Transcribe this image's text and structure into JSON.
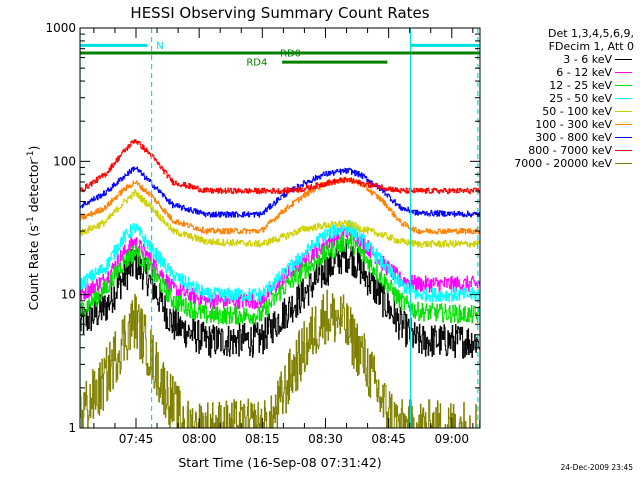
{
  "colors": {
    "background": "#ffffff",
    "axis": "#000000",
    "state_line": "#008000",
    "night_line": "#00e0e0"
  },
  "chart_data": {
    "type": "line",
    "title": "HESSI Observing Summary Count Rates",
    "xlabel": "Start Time (16-Sep-08 07:31:42)",
    "ylabel_parts": [
      "Count Rate (s",
      "-1",
      " detector",
      "-1",
      ")"
    ],
    "y_scale": "log",
    "ylim": [
      1,
      1000
    ],
    "y_ticks": [
      {
        "value": 1,
        "label": "1"
      },
      {
        "value": 10,
        "label": "10"
      },
      {
        "value": 100,
        "label": "100"
      },
      {
        "value": 1000,
        "label": "1000"
      }
    ],
    "xlim_minutes": [
      0,
      95
    ],
    "x_ticks": [
      {
        "value": 13.3,
        "label": "07:45"
      },
      {
        "value": 28.3,
        "label": "08:00"
      },
      {
        "value": 43.3,
        "label": "08:15"
      },
      {
        "value": 58.3,
        "label": "08:30"
      },
      {
        "value": 73.3,
        "label": "08:45"
      },
      {
        "value": 88.3,
        "label": "09:00"
      }
    ],
    "legend_header": [
      "Det 1,3,4,5,6,9,",
      "FDecim 1, Att 0"
    ],
    "series": [
      {
        "name": "3 - 6 keV",
        "color": "#000000",
        "noise": 0.3,
        "points": [
          [
            0,
            6
          ],
          [
            6,
            8
          ],
          [
            10,
            13
          ],
          [
            13,
            17.5
          ],
          [
            17,
            12
          ],
          [
            22,
            6
          ],
          [
            30,
            4.5
          ],
          [
            43,
            4.6
          ],
          [
            48,
            7
          ],
          [
            53,
            10
          ],
          [
            58,
            15
          ],
          [
            62,
            19
          ],
          [
            64,
            20
          ],
          [
            67,
            15
          ],
          [
            72,
            9
          ],
          [
            76,
            6
          ],
          [
            80,
            4.5
          ],
          [
            95,
            4.5
          ]
        ]
      },
      {
        "name": "6 - 12 keV",
        "color": "#ff00ff",
        "noise": 0.14,
        "points": [
          [
            0,
            10
          ],
          [
            6,
            13
          ],
          [
            10,
            20
          ],
          [
            13,
            25
          ],
          [
            17,
            18
          ],
          [
            22,
            11
          ],
          [
            30,
            9
          ],
          [
            43,
            9
          ],
          [
            48,
            13
          ],
          [
            53,
            18
          ],
          [
            58,
            24
          ],
          [
            62,
            29
          ],
          [
            64,
            30
          ],
          [
            67,
            25
          ],
          [
            72,
            17
          ],
          [
            76,
            13
          ],
          [
            80,
            12
          ],
          [
            95,
            12
          ]
        ]
      },
      {
        "name": "12 - 25 keV",
        "color": "#00e000",
        "noise": 0.16,
        "points": [
          [
            0,
            7.5
          ],
          [
            6,
            11
          ],
          [
            10,
            17
          ],
          [
            13,
            21
          ],
          [
            17,
            15
          ],
          [
            22,
            9
          ],
          [
            30,
            7
          ],
          [
            43,
            7
          ],
          [
            48,
            11
          ],
          [
            53,
            15
          ],
          [
            58,
            20
          ],
          [
            62,
            24
          ],
          [
            64,
            25
          ],
          [
            67,
            20
          ],
          [
            72,
            13
          ],
          [
            76,
            9
          ],
          [
            80,
            7.5
          ],
          [
            95,
            7
          ]
        ]
      },
      {
        "name": "25 - 50 keV",
        "color": "#00ffff",
        "noise": 0.12,
        "points": [
          [
            0,
            12
          ],
          [
            6,
            16
          ],
          [
            10,
            26
          ],
          [
            13,
            32
          ],
          [
            17,
            22
          ],
          [
            22,
            14
          ],
          [
            30,
            10
          ],
          [
            43,
            10
          ],
          [
            48,
            14
          ],
          [
            53,
            20
          ],
          [
            58,
            28
          ],
          [
            62,
            31
          ],
          [
            64,
            32
          ],
          [
            67,
            26
          ],
          [
            72,
            17
          ],
          [
            76,
            12
          ],
          [
            80,
            10
          ],
          [
            95,
            10
          ]
        ]
      },
      {
        "name": "50 - 100 keV",
        "color": "#d0d000",
        "noise": 0.06,
        "points": [
          [
            0,
            29
          ],
          [
            6,
            35
          ],
          [
            10,
            48
          ],
          [
            13,
            58
          ],
          [
            17,
            45
          ],
          [
            22,
            30
          ],
          [
            30,
            25
          ],
          [
            43,
            24
          ],
          [
            48,
            27
          ],
          [
            53,
            31
          ],
          [
            58,
            33
          ],
          [
            62,
            34
          ],
          [
            64,
            34
          ],
          [
            67,
            31
          ],
          [
            72,
            28
          ],
          [
            76,
            25
          ],
          [
            80,
            24
          ],
          [
            95,
            24
          ]
        ]
      },
      {
        "name": "100 - 300 keV",
        "color": "#ff8000",
        "noise": 0.05,
        "points": [
          [
            0,
            37
          ],
          [
            6,
            45
          ],
          [
            10,
            60
          ],
          [
            13,
            70
          ],
          [
            17,
            55
          ],
          [
            22,
            36
          ],
          [
            30,
            30
          ],
          [
            43,
            30
          ],
          [
            48,
            42
          ],
          [
            53,
            55
          ],
          [
            58,
            68
          ],
          [
            62,
            72
          ],
          [
            64,
            73
          ],
          [
            67,
            67
          ],
          [
            72,
            50
          ],
          [
            76,
            35
          ],
          [
            80,
            30
          ],
          [
            95,
            30
          ]
        ]
      },
      {
        "name": "300 - 800 keV",
        "color": "#0000ff",
        "noise": 0.05,
        "points": [
          [
            0,
            46
          ],
          [
            6,
            58
          ],
          [
            10,
            75
          ],
          [
            13,
            90
          ],
          [
            17,
            68
          ],
          [
            22,
            47
          ],
          [
            30,
            40
          ],
          [
            43,
            40
          ],
          [
            48,
            55
          ],
          [
            53,
            68
          ],
          [
            58,
            80
          ],
          [
            62,
            84
          ],
          [
            64,
            85
          ],
          [
            67,
            78
          ],
          [
            72,
            60
          ],
          [
            76,
            45
          ],
          [
            80,
            41
          ],
          [
            95,
            40
          ]
        ]
      },
      {
        "name": "800 - 7000 keV",
        "color": "#ff0000",
        "noise": 0.05,
        "points": [
          [
            0,
            60
          ],
          [
            6,
            80
          ],
          [
            10,
            115
          ],
          [
            13,
            145
          ],
          [
            17,
            110
          ],
          [
            22,
            70
          ],
          [
            30,
            60
          ],
          [
            43,
            60
          ],
          [
            48,
            60
          ],
          [
            53,
            62
          ],
          [
            58,
            68
          ],
          [
            62,
            72
          ],
          [
            64,
            72
          ],
          [
            67,
            68
          ],
          [
            72,
            64
          ],
          [
            76,
            60
          ],
          [
            80,
            60
          ],
          [
            95,
            60
          ]
        ]
      },
      {
        "name": "7000 - 20000 keV",
        "color": "#808000",
        "noise": 0.5,
        "points": [
          [
            0,
            1.3
          ],
          [
            5,
            2
          ],
          [
            10,
            4.5
          ],
          [
            13,
            6.5
          ],
          [
            16,
            4
          ],
          [
            20,
            2
          ],
          [
            25,
            1
          ],
          [
            45,
            1
          ],
          [
            50,
            2.5
          ],
          [
            55,
            5
          ],
          [
            58,
            7
          ],
          [
            62,
            6.5
          ],
          [
            67,
            3.5
          ],
          [
            72,
            1.5
          ],
          [
            76,
            1
          ],
          [
            95,
            1
          ]
        ]
      }
    ],
    "state_bars": [
      {
        "label": "N",
        "kind": "night",
        "y": 740,
        "segments": [
          [
            0,
            16
          ],
          [
            78.5,
            95
          ]
        ],
        "label_at": 19
      },
      {
        "label": "RD0",
        "kind": "state",
        "y": 650,
        "segments": [
          [
            0,
            78.5
          ],
          [
            78.5,
            95
          ]
        ],
        "label_at": 50
      },
      {
        "label": "RD4",
        "kind": "state",
        "y": 555,
        "segments": [
          [
            48,
            73
          ]
        ],
        "label_at": 42
      }
    ],
    "vertical_lines": [
      {
        "x": 0,
        "kind": "solid"
      },
      {
        "x": 17,
        "kind": "dashed"
      },
      {
        "x": 78.5,
        "kind": "solid"
      },
      {
        "x": 94.5,
        "kind": "dashed"
      }
    ],
    "grid": false
  },
  "footer": {
    "date": "24-Dec-2009 23:45"
  }
}
